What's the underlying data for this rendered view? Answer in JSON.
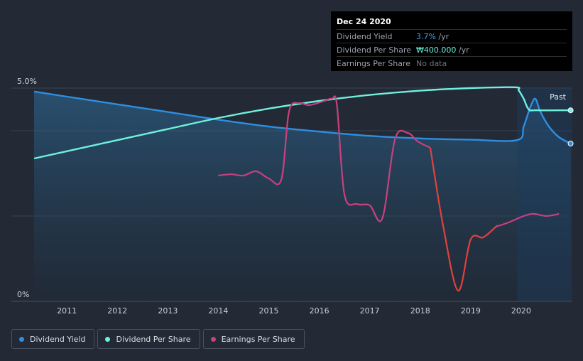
{
  "chart_data": {
    "type": "line",
    "title": "",
    "x_ticks": [
      "2011",
      "2012",
      "2013",
      "2014",
      "2015",
      "2016",
      "2017",
      "2018",
      "2019",
      "2020"
    ],
    "y_ticks": [
      "5.0%",
      "0%"
    ],
    "x_range": [
      2010.35,
      2021.0
    ],
    "past_label": "Past",
    "series": [
      {
        "name": "Dividend Yield",
        "color": "#2e8ee0",
        "points": [
          [
            2010.35,
            4.92
          ],
          [
            2011.0,
            4.8
          ],
          [
            2012.0,
            4.62
          ],
          [
            2013.0,
            4.44
          ],
          [
            2014.0,
            4.26
          ],
          [
            2015.0,
            4.1
          ],
          [
            2016.0,
            3.98
          ],
          [
            2017.0,
            3.88
          ],
          [
            2018.0,
            3.82
          ],
          [
            2019.0,
            3.79
          ],
          [
            2019.92,
            3.78
          ],
          [
            2020.05,
            4.1
          ],
          [
            2020.18,
            4.55
          ],
          [
            2020.28,
            4.75
          ],
          [
            2020.38,
            4.45
          ],
          [
            2020.55,
            4.1
          ],
          [
            2020.75,
            3.85
          ],
          [
            2020.98,
            3.7
          ]
        ]
      },
      {
        "name": "Dividend Per Share",
        "color": "#6ff0dc",
        "points": [
          [
            2010.35,
            3.35
          ],
          [
            2011.0,
            3.52
          ],
          [
            2012.0,
            3.78
          ],
          [
            2013.0,
            4.04
          ],
          [
            2014.0,
            4.3
          ],
          [
            2015.0,
            4.52
          ],
          [
            2016.0,
            4.7
          ],
          [
            2017.0,
            4.84
          ],
          [
            2018.0,
            4.94
          ],
          [
            2019.0,
            5.0
          ],
          [
            2019.88,
            5.02
          ],
          [
            2019.95,
            4.95
          ],
          [
            2020.05,
            4.75
          ],
          [
            2020.15,
            4.5
          ],
          [
            2020.3,
            4.48
          ],
          [
            2020.98,
            4.48
          ]
        ]
      },
      {
        "name": "Earnings Per Share",
        "color": "#c8407f",
        "points": [
          [
            2014.0,
            2.95
          ],
          [
            2014.25,
            2.98
          ],
          [
            2014.5,
            2.95
          ],
          [
            2014.75,
            3.05
          ],
          [
            2015.0,
            2.88
          ],
          [
            2015.25,
            2.86
          ],
          [
            2015.4,
            4.45
          ],
          [
            2015.6,
            4.65
          ],
          [
            2015.8,
            4.6
          ],
          [
            2016.1,
            4.7
          ],
          [
            2016.25,
            4.75
          ],
          [
            2016.35,
            4.6
          ],
          [
            2016.5,
            2.5
          ],
          [
            2016.75,
            2.28
          ],
          [
            2017.0,
            2.25
          ],
          [
            2017.25,
            1.95
          ],
          [
            2017.5,
            3.8
          ],
          [
            2017.75,
            3.95
          ],
          [
            2017.95,
            3.75
          ],
          [
            2018.2,
            3.6
          ],
          [
            2018.45,
            1.8
          ],
          [
            2018.75,
            0.25
          ],
          [
            2019.0,
            1.45
          ],
          [
            2019.25,
            1.5
          ],
          [
            2019.5,
            1.75
          ],
          [
            2019.75,
            1.85
          ],
          [
            2020.05,
            2.0
          ],
          [
            2020.25,
            2.05
          ],
          [
            2020.5,
            2.0
          ],
          [
            2020.75,
            2.05
          ]
        ],
        "negative_color": "#e0413e",
        "negative_range": [
          2018.4,
          2019.5
        ]
      }
    ],
    "ylim": [
      0,
      5.0
    ]
  },
  "tooltip": {
    "date": "Dec 24 2020",
    "rows": [
      {
        "label": "Dividend Yield",
        "value": "3.7%",
        "unit": " /yr"
      },
      {
        "label": "Dividend Per Share",
        "value": "₩400.000",
        "unit": " /yr"
      },
      {
        "label": "Earnings Per Share",
        "value": "No data",
        "unit": ""
      }
    ]
  },
  "legend": [
    {
      "label": "Dividend Yield",
      "color": "#2e8ee0"
    },
    {
      "label": "Dividend Per Share",
      "color": "#6ff0dc"
    },
    {
      "label": "Earnings Per Share",
      "color": "#c8407f"
    }
  ]
}
